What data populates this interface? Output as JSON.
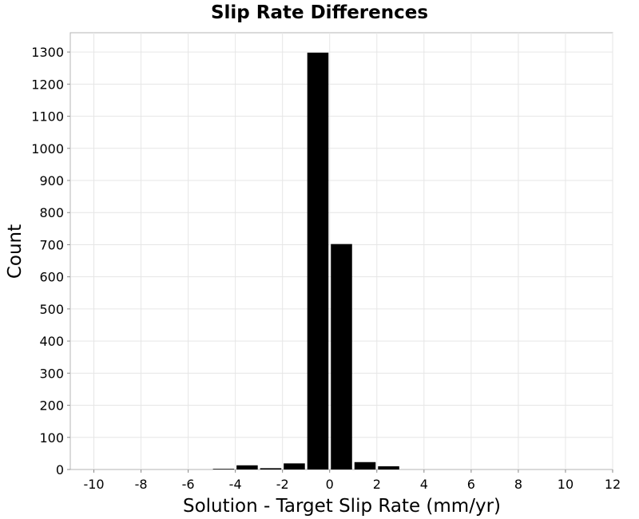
{
  "chart_data": {
    "type": "bar",
    "title": "Slip Rate Differences",
    "xlabel": "Solution - Target Slip Rate (mm/yr)",
    "ylabel": "Count",
    "xlim": [
      -11,
      12
    ],
    "ylim": [
      0,
      1360
    ],
    "bin_width": 1,
    "x": [
      -4.5,
      -3.5,
      -2.5,
      -1.5,
      -0.5,
      0.5,
      1.5,
      2.5
    ],
    "values": [
      2,
      13,
      4,
      19,
      1298,
      702,
      23,
      10
    ],
    "x_ticks": [
      -10,
      -8,
      -6,
      -4,
      -2,
      0,
      2,
      4,
      6,
      8,
      10,
      12
    ],
    "x_tick_labels": [
      "-10",
      "-8",
      "-6",
      "-4",
      "-2",
      "0",
      "2",
      "4",
      "6",
      "8",
      "10",
      "12"
    ],
    "y_ticks": [
      0,
      100,
      200,
      300,
      400,
      500,
      600,
      700,
      800,
      900,
      1000,
      1100,
      1200,
      1300
    ],
    "y_tick_labels": [
      "0",
      "100",
      "200",
      "300",
      "400",
      "500",
      "600",
      "700",
      "800",
      "900",
      "1000",
      "1100",
      "1200",
      "1300"
    ],
    "grid": true,
    "bar_color": "#000000",
    "grid_color": "#e6e6e6",
    "frame_color": "#b4b4b4"
  }
}
